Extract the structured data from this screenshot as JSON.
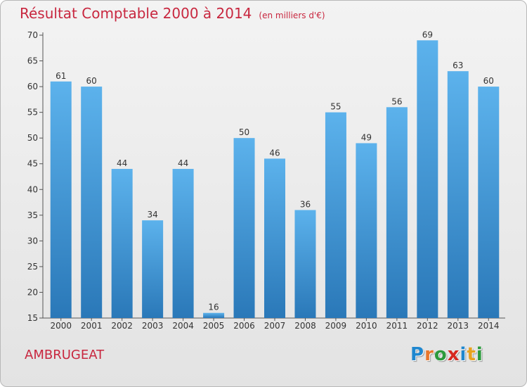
{
  "header": {
    "title": "Résultat Comptable 2000 à 2014",
    "unit": "(en milliers d'€)"
  },
  "footer": {
    "commune": "AMBRUGEAT",
    "logo_letters": [
      "P",
      "r",
      "o",
      "x",
      "i",
      "t",
      "i"
    ],
    "logo_colors": [
      "#1f87cf",
      "#e8762b",
      "#2c9a3c",
      "#d6281f",
      "#1f87cf",
      "#e8a21f",
      "#2c9a3c"
    ]
  },
  "colors": {
    "bar_top": "#5cb2ec",
    "bar_bottom": "#2a78b8",
    "title": "#c8273f",
    "axis": "#555555"
  },
  "chart_data": {
    "type": "bar",
    "title": "Résultat Comptable 2000 à 2014",
    "categories": [
      "2000",
      "2001",
      "2002",
      "2003",
      "2004",
      "2005",
      "2006",
      "2007",
      "2008",
      "2009",
      "2010",
      "2011",
      "2012",
      "2013",
      "2014"
    ],
    "values": [
      61,
      60,
      44,
      34,
      44,
      16,
      50,
      46,
      36,
      55,
      49,
      56,
      69,
      63,
      60
    ],
    "ylim": [
      15,
      70
    ],
    "yticks": [
      15,
      20,
      25,
      30,
      35,
      40,
      45,
      50,
      55,
      60,
      65,
      70
    ],
    "grid": false,
    "data_labels": true
  }
}
